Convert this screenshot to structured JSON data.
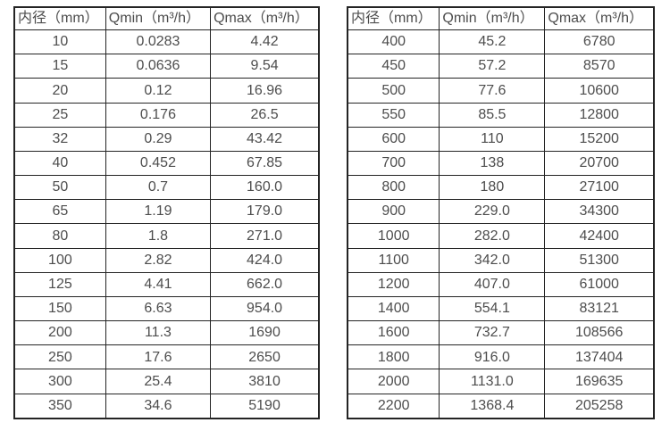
{
  "colors": {
    "border": "#242424",
    "text": "#4d4d4d",
    "background": "#ffffff"
  },
  "tables": [
    {
      "name": "flow-range-table-small-diameters",
      "headers": [
        "内径（mm）",
        "Qmin（m³/h）",
        "Qmax（m³/h）"
      ],
      "rows": [
        [
          "10",
          "0.0283",
          "4.42"
        ],
        [
          "15",
          "0.0636",
          "9.54"
        ],
        [
          "20",
          "0.12",
          "16.96"
        ],
        [
          "25",
          "0.176",
          "26.5"
        ],
        [
          "32",
          "0.29",
          "43.42"
        ],
        [
          "40",
          "0.452",
          "67.85"
        ],
        [
          "50",
          "0.7",
          "160.0"
        ],
        [
          "65",
          "1.19",
          "179.0"
        ],
        [
          "80",
          "1.8",
          "271.0"
        ],
        [
          "100",
          "2.82",
          "424.0"
        ],
        [
          "125",
          "4.41",
          "662.0"
        ],
        [
          "150",
          "6.63",
          "954.0"
        ],
        [
          "200",
          "11.3",
          "1690"
        ],
        [
          "250",
          "17.6",
          "2650"
        ],
        [
          "300",
          "25.4",
          "3810"
        ],
        [
          "350",
          "34.6",
          "5190"
        ]
      ]
    },
    {
      "name": "flow-range-table-large-diameters",
      "headers": [
        "内径（mm）",
        "Qmin（m³/h）",
        "Qmax（m³/h）"
      ],
      "rows": [
        [
          "400",
          "45.2",
          "6780"
        ],
        [
          "450",
          "57.2",
          "8570"
        ],
        [
          "500",
          "77.6",
          "10600"
        ],
        [
          "550",
          "85.5",
          "12800"
        ],
        [
          "600",
          "110",
          "15200"
        ],
        [
          "700",
          "138",
          "20700"
        ],
        [
          "800",
          "180",
          "27100"
        ],
        [
          "900",
          "229.0",
          "34300"
        ],
        [
          "1000",
          "282.0",
          "42400"
        ],
        [
          "1100",
          "342.0",
          "51300"
        ],
        [
          "1200",
          "407.0",
          "61000"
        ],
        [
          "1400",
          "554.1",
          "83121"
        ],
        [
          "1600",
          "732.7",
          "108566"
        ],
        [
          "1800",
          "916.0",
          "137404"
        ],
        [
          "2000",
          "1131.0",
          "169635"
        ],
        [
          "2200",
          "1368.4",
          "205258"
        ]
      ]
    }
  ]
}
